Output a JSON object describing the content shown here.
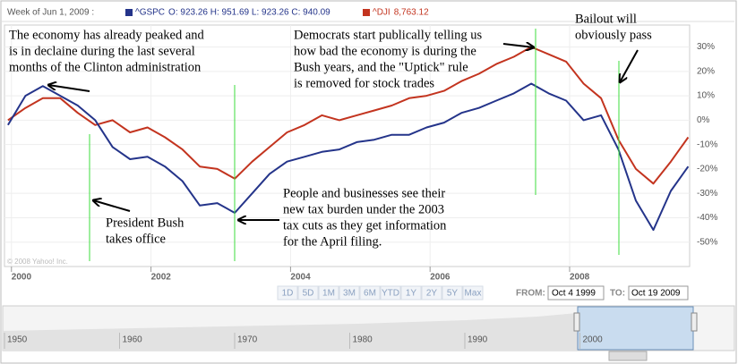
{
  "chart_data": {
    "type": "line",
    "header": "Week of Jun 1, 2009 :",
    "x": [
      1999.95,
      2000.2,
      2000.45,
      2000.7,
      2000.95,
      2001.2,
      2001.45,
      2001.7,
      2001.95,
      2002.2,
      2002.45,
      2002.7,
      2002.95,
      2003.2,
      2003.45,
      2003.7,
      2003.95,
      2004.2,
      2004.45,
      2004.7,
      2004.95,
      2005.2,
      2005.45,
      2005.7,
      2005.95,
      2006.2,
      2006.45,
      2006.7,
      2006.95,
      2007.2,
      2007.45,
      2007.7,
      2007.95,
      2008.2,
      2008.45,
      2008.7,
      2008.95,
      2009.2,
      2009.45,
      2009.7
    ],
    "series": [
      {
        "name": "^GSPC",
        "quote": "O: 923.26 H: 951.69 L: 923.26 C: 940.09",
        "color": "#24348a",
        "values": [
          -2,
          10,
          14,
          10,
          6,
          0,
          -11,
          -16,
          -15,
          -19,
          -25,
          -35,
          -34,
          -38,
          -30,
          -22,
          -17,
          -15,
          -13,
          -12,
          -9,
          -8,
          -6,
          -6,
          -3,
          -1,
          3,
          5,
          8,
          11,
          15,
          11,
          8,
          0,
          2,
          -12,
          -33,
          -45,
          -29,
          -19
        ]
      },
      {
        "name": "^DJI",
        "quote": "8,763.12",
        "color": "#c3341f",
        "values": [
          0,
          5,
          9,
          9,
          3,
          -2,
          0,
          -5,
          -3,
          -7,
          -12,
          -19,
          -20,
          -24,
          -17,
          -11,
          -5,
          -2,
          2,
          0,
          2,
          4,
          6,
          9,
          10,
          12,
          16,
          19,
          23,
          26,
          30,
          27,
          24,
          15,
          9,
          -8,
          -20,
          -26,
          -17,
          -7
        ]
      }
    ],
    "xlim": [
      1999.9,
      2009.72
    ],
    "xticks": [
      2000,
      2002,
      2004,
      2006,
      2008
    ],
    "ylim": [
      -60,
      39
    ],
    "yticks": [
      {
        "value": 30,
        "label": "30%"
      },
      {
        "value": 20,
        "label": "20%"
      },
      {
        "value": 10,
        "label": "10%"
      },
      {
        "value": 0,
        "label": "0%"
      },
      {
        "value": -10,
        "label": "-10%"
      },
      {
        "value": -20,
        "label": "-20%"
      },
      {
        "value": -30,
        "label": "-30%"
      },
      {
        "value": -40,
        "label": "-40%"
      },
      {
        "value": -50,
        "label": "-50%"
      }
    ],
    "grid": true,
    "watermark": "© 2008 Yahoo! Inc.",
    "annotations": [
      [
        "The economy has already peaked and",
        "is in declaine during the last several",
        "months of the Clinton administration"
      ],
      [
        "President Bush",
        "takes office"
      ],
      [
        "People and businesses see their",
        "new tax burden under the 2003",
        "tax cuts as they get information",
        "for the April filing."
      ],
      [
        "Democrats start publically telling us",
        "how bad the economy is during the",
        "Bush years, and the \"Uptick\" rule",
        "is removed for stock trades"
      ],
      [
        "Bailout will",
        "obviously pass"
      ]
    ],
    "ranges": [
      "1D",
      "5D",
      "1M",
      "3M",
      "6M",
      "YTD",
      "1Y",
      "2Y",
      "5Y",
      "Max"
    ],
    "from_label": "FROM:",
    "from_value": "Oct 4 1999",
    "to_label": "TO:",
    "to_value": "Oct 19 2009",
    "navigator_labels": [
      "1950",
      "1960",
      "1970",
      "1980",
      "1990",
      "2000"
    ]
  }
}
